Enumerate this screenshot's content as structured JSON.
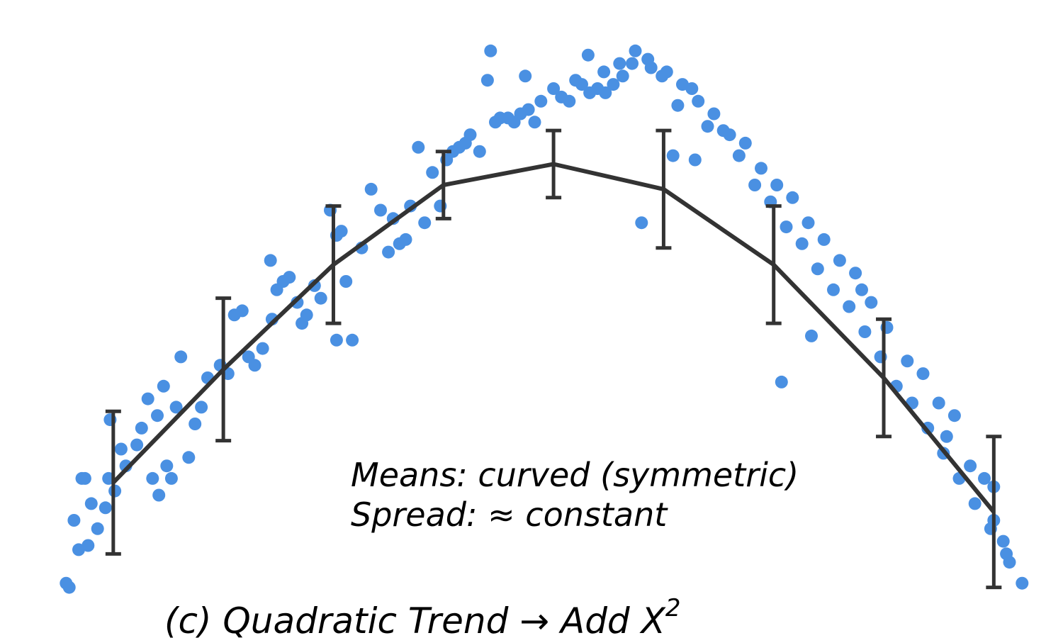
{
  "chart_data": {
    "type": "scatter",
    "title": "(c) Quadratic Trend → Add X",
    "title_superscript": "2",
    "annotations": [
      "Means: curved (symmetric)",
      "Spread: ≈ constant"
    ],
    "xlim": [
      -3.15,
      3.25
    ],
    "ylim": [
      -1.05,
      0.32
    ],
    "grid": false,
    "axes_visible": false,
    "colors": {
      "points": "#4a90e2",
      "means": "#333333"
    },
    "scatter_points": [
      {
        "x": -3.0,
        "y": -0.97
      },
      {
        "x": -2.98,
        "y": -0.98
      },
      {
        "x": -2.92,
        "y": -0.89
      },
      {
        "x": -2.86,
        "y": -0.88
      },
      {
        "x": -2.95,
        "y": -0.82
      },
      {
        "x": -2.9,
        "y": -0.72
      },
      {
        "x": -2.84,
        "y": -0.78
      },
      {
        "x": -2.8,
        "y": -0.84
      },
      {
        "x": -2.75,
        "y": -0.79
      },
      {
        "x": -2.73,
        "y": -0.72
      },
      {
        "x": -2.69,
        "y": -0.75
      },
      {
        "x": -2.65,
        "y": -0.65
      },
      {
        "x": -2.62,
        "y": -0.69
      },
      {
        "x": -2.55,
        "y": -0.64
      },
      {
        "x": -2.52,
        "y": -0.6
      },
      {
        "x": -2.48,
        "y": -0.53
      },
      {
        "x": -2.45,
        "y": -0.72
      },
      {
        "x": -2.41,
        "y": -0.76
      },
      {
        "x": -2.36,
        "y": -0.69
      },
      {
        "x": -2.33,
        "y": -0.72
      },
      {
        "x": -2.42,
        "y": -0.57
      },
      {
        "x": -2.38,
        "y": -0.5
      },
      {
        "x": -2.3,
        "y": -0.55
      },
      {
        "x": -2.27,
        "y": -0.43
      },
      {
        "x": -2.22,
        "y": -0.67
      },
      {
        "x": -2.18,
        "y": -0.59
      },
      {
        "x": -2.14,
        "y": -0.55
      },
      {
        "x": -2.1,
        "y": -0.48
      },
      {
        "x": -2.02,
        "y": -0.45
      },
      {
        "x": -1.97,
        "y": -0.47
      },
      {
        "x": -1.93,
        "y": -0.33
      },
      {
        "x": -1.88,
        "y": -0.32
      },
      {
        "x": -1.84,
        "y": -0.43
      },
      {
        "x": -1.8,
        "y": -0.45
      },
      {
        "x": -1.75,
        "y": -0.41
      },
      {
        "x": -1.7,
        "y": -0.2
      },
      {
        "x": -1.69,
        "y": -0.34
      },
      {
        "x": -1.66,
        "y": -0.27
      },
      {
        "x": -1.62,
        "y": -0.25
      },
      {
        "x": -1.58,
        "y": -0.24
      },
      {
        "x": -1.53,
        "y": -0.3
      },
      {
        "x": -1.5,
        "y": -0.35
      },
      {
        "x": -1.47,
        "y": -0.33
      },
      {
        "x": -1.42,
        "y": -0.26
      },
      {
        "x": -1.38,
        "y": -0.29
      },
      {
        "x": -1.32,
        "y": -0.08
      },
      {
        "x": -1.28,
        "y": -0.14
      },
      {
        "x": -1.25,
        "y": -0.13
      },
      {
        "x": -1.18,
        "y": -0.39
      },
      {
        "x": -1.22,
        "y": -0.25
      },
      {
        "x": -1.12,
        "y": -0.17
      },
      {
        "x": -1.06,
        "y": -0.03
      },
      {
        "x": -1.0,
        "y": -0.08
      },
      {
        "x": -0.95,
        "y": -0.18
      },
      {
        "x": -0.92,
        "y": -0.1
      },
      {
        "x": -0.88,
        "y": -0.16
      },
      {
        "x": -0.84,
        "y": -0.15
      },
      {
        "x": -0.81,
        "y": -0.07
      },
      {
        "x": -0.76,
        "y": 0.07
      },
      {
        "x": -0.72,
        "y": -0.11
      },
      {
        "x": -0.67,
        "y": 0.01
      },
      {
        "x": -0.62,
        "y": -0.07
      },
      {
        "x": -0.58,
        "y": 0.04
      },
      {
        "x": -0.54,
        "y": 0.06
      },
      {
        "x": -0.5,
        "y": 0.07
      },
      {
        "x": -0.46,
        "y": 0.08
      },
      {
        "x": -0.43,
        "y": 0.1
      },
      {
        "x": -0.37,
        "y": 0.06
      },
      {
        "x": -0.3,
        "y": 0.3
      },
      {
        "x": -0.32,
        "y": 0.23
      },
      {
        "x": -0.27,
        "y": 0.13
      },
      {
        "x": -0.24,
        "y": 0.14
      },
      {
        "x": -0.19,
        "y": 0.14
      },
      {
        "x": -0.15,
        "y": 0.13
      },
      {
        "x": -0.11,
        "y": 0.15
      },
      {
        "x": -0.06,
        "y": 0.16
      },
      {
        "x": -0.02,
        "y": 0.13
      },
      {
        "x": 0.02,
        "y": 0.18
      },
      {
        "x": -0.08,
        "y": 0.24
      },
      {
        "x": 0.1,
        "y": 0.21
      },
      {
        "x": 0.15,
        "y": 0.19
      },
      {
        "x": 0.2,
        "y": 0.18
      },
      {
        "x": 0.24,
        "y": 0.23
      },
      {
        "x": 0.28,
        "y": 0.22
      },
      {
        "x": 0.33,
        "y": 0.2
      },
      {
        "x": 0.38,
        "y": 0.21
      },
      {
        "x": 0.43,
        "y": 0.2
      },
      {
        "x": 0.48,
        "y": 0.22
      },
      {
        "x": 0.54,
        "y": 0.24
      },
      {
        "x": 0.6,
        "y": 0.27
      },
      {
        "x": 0.7,
        "y": 0.28
      },
      {
        "x": 0.79,
        "y": 0.24
      },
      {
        "x": 0.89,
        "y": 0.17
      },
      {
        "x": 0.98,
        "y": 0.21
      },
      {
        "x": 1.08,
        "y": 0.12
      },
      {
        "x": 1.18,
        "y": 0.11
      },
      {
        "x": 1.28,
        "y": 0.05
      },
      {
        "x": 1.38,
        "y": -0.02
      },
      {
        "x": 1.48,
        "y": -0.06
      },
      {
        "x": 1.58,
        "y": -0.12
      },
      {
        "x": 1.68,
        "y": -0.16
      },
      {
        "x": 1.78,
        "y": -0.22
      },
      {
        "x": 1.88,
        "y": -0.27
      },
      {
        "x": 1.98,
        "y": -0.31
      },
      {
        "x": 2.08,
        "y": -0.37
      },
      {
        "x": 2.18,
        "y": -0.43
      },
      {
        "x": 2.28,
        "y": -0.5
      },
      {
        "x": 2.38,
        "y": -0.54
      },
      {
        "x": 2.48,
        "y": -0.6
      },
      {
        "x": 2.58,
        "y": -0.66
      },
      {
        "x": 2.68,
        "y": -0.72
      },
      {
        "x": 2.78,
        "y": -0.78
      },
      {
        "x": 2.88,
        "y": -0.84
      },
      {
        "x": 2.98,
        "y": -0.9
      },
      {
        "x": 3.08,
        "y": -0.97
      },
      {
        "x": 3.0,
        "y": -0.92
      },
      {
        "x": 2.96,
        "y": -0.87
      },
      {
        "x": 2.9,
        "y": -0.82
      },
      {
        "x": 2.84,
        "y": -0.72
      },
      {
        "x": 2.75,
        "y": -0.69
      },
      {
        "x": 2.65,
        "y": -0.57
      },
      {
        "x": 2.55,
        "y": -0.54
      },
      {
        "x": 2.45,
        "y": -0.47
      },
      {
        "x": 2.35,
        "y": -0.44
      },
      {
        "x": 2.22,
        "y": -0.36
      },
      {
        "x": 2.12,
        "y": -0.3
      },
      {
        "x": 2.02,
        "y": -0.23
      },
      {
        "x": 1.92,
        "y": -0.2
      },
      {
        "x": 1.82,
        "y": -0.15
      },
      {
        "x": 1.72,
        "y": -0.11
      },
      {
        "x": 1.62,
        "y": -0.05
      },
      {
        "x": 1.52,
        "y": -0.02
      },
      {
        "x": 1.42,
        "y": 0.02
      },
      {
        "x": 1.32,
        "y": 0.08
      },
      {
        "x": 1.22,
        "y": 0.1
      },
      {
        "x": 1.12,
        "y": 0.15
      },
      {
        "x": 1.02,
        "y": 0.18
      },
      {
        "x": 0.92,
        "y": 0.22
      },
      {
        "x": 0.82,
        "y": 0.25
      },
      {
        "x": 0.72,
        "y": 0.26
      },
      {
        "x": 0.62,
        "y": 0.3
      },
      {
        "x": 0.52,
        "y": 0.27
      },
      {
        "x": 0.42,
        "y": 0.25
      },
      {
        "x": 0.32,
        "y": 0.29
      },
      {
        "x": 0.86,
        "y": 0.05
      },
      {
        "x": 0.66,
        "y": -0.11
      },
      {
        "x": 1.0,
        "y": 0.04
      },
      {
        "x": 1.55,
        "y": -0.49
      },
      {
        "x": 1.74,
        "y": -0.38
      },
      {
        "x": 2.06,
        "y": -0.27
      },
      {
        "x": -1.28,
        "y": -0.39
      },
      {
        "x": -2.72,
        "y": -0.58
      },
      {
        "x": -2.88,
        "y": -0.72
      },
      {
        "x": 2.6,
        "y": -0.62
      },
      {
        "x": 2.9,
        "y": -0.74
      }
    ],
    "mean_line": {
      "x": [
        -2.7,
        -2.0,
        -1.3,
        -0.6,
        0.1,
        0.8,
        1.5,
        2.2,
        2.9
      ],
      "y": [
        -0.73,
        -0.46,
        -0.21,
        -0.02,
        0.03,
        -0.03,
        -0.21,
        -0.48,
        -0.8
      ],
      "err": [
        0.17,
        0.17,
        0.14,
        0.08,
        0.08,
        0.14,
        0.14,
        0.14,
        0.18
      ]
    }
  }
}
